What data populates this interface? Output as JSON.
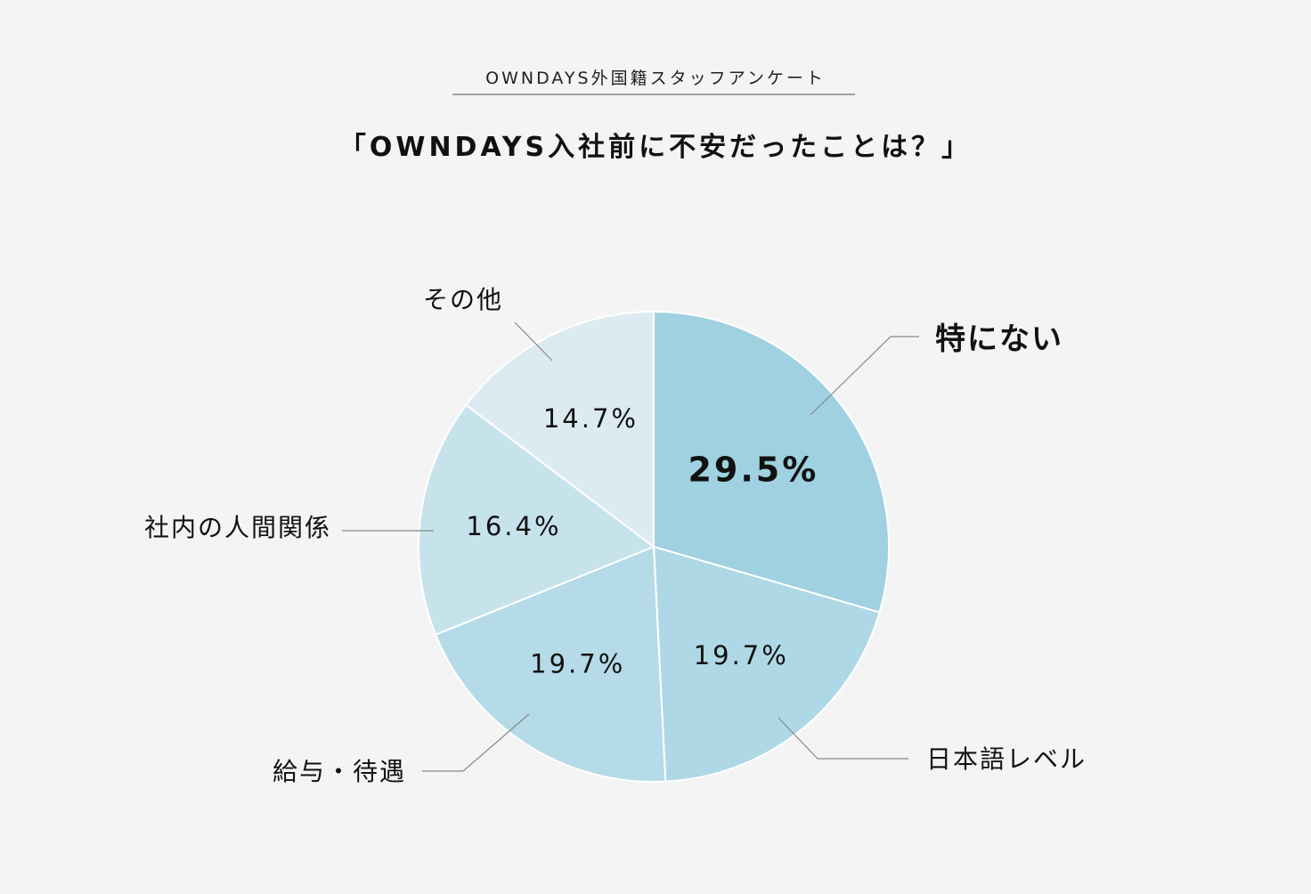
{
  "header": {
    "subtitle": "OWNDAYS外国籍スタッフアンケート",
    "title": "「OWNDAYS入社前に不安だったことは？」"
  },
  "chart_data": {
    "type": "pie",
    "title": "「OWNDAYS入社前に不安だったことは？」",
    "subtitle": "OWNDAYS外国籍スタッフアンケート",
    "start_angle": "12 o'clock, clockwise",
    "slices": [
      {
        "label": "特にない",
        "value": 29.5,
        "display": "29.5%",
        "color": "#9fd1e0",
        "emphasis": true
      },
      {
        "label": "日本語レベル",
        "value": 19.7,
        "display": "19.7%",
        "color": "#aed8e5",
        "emphasis": false
      },
      {
        "label": "給与・待遇",
        "value": 19.7,
        "display": "19.7%",
        "color": "#b4dbe7",
        "emphasis": false
      },
      {
        "label": "社内の人間関係",
        "value": 16.4,
        "display": "16.4%",
        "color": "#c6e3ec",
        "emphasis": false
      },
      {
        "label": "その他",
        "value": 14.7,
        "display": "14.7%",
        "color": "#dcebf1",
        "emphasis": false
      }
    ]
  }
}
